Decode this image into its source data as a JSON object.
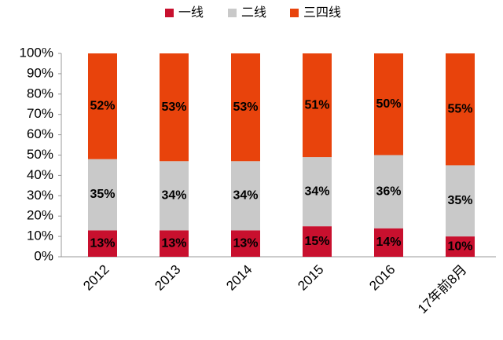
{
  "chart_data": {
    "type": "stacked_bar",
    "categories": [
      "2012",
      "2013",
      "2014",
      "2015",
      "2016",
      "17年前8月"
    ],
    "series": [
      {
        "name": "一线",
        "color": "#c8102e",
        "values": [
          13,
          13,
          13,
          15,
          14,
          10
        ],
        "value_labels": [
          "13%",
          "13%",
          "13%",
          "15%",
          "14%",
          "10%"
        ]
      },
      {
        "name": "二线",
        "color": "#c9c9c9",
        "values": [
          35,
          34,
          34,
          34,
          36,
          35
        ],
        "value_labels": [
          "35%",
          "34%",
          "34%",
          "34%",
          "36%",
          "35%"
        ]
      },
      {
        "name": "三四线",
        "color": "#e8430c",
        "values": [
          52,
          53,
          53,
          51,
          50,
          55
        ],
        "value_labels": [
          "52%",
          "53%",
          "53%",
          "51%",
          "50%",
          "55%"
        ]
      }
    ],
    "ylim": [
      0,
      100
    ],
    "yticks": [
      {
        "value": 0,
        "label": "0%"
      },
      {
        "value": 10,
        "label": "10%"
      },
      {
        "value": 20,
        "label": "20%"
      },
      {
        "value": 30,
        "label": "30%"
      },
      {
        "value": 40,
        "label": "40%"
      },
      {
        "value": 50,
        "label": "50%"
      },
      {
        "value": 60,
        "label": "60%"
      },
      {
        "value": 70,
        "label": "70%"
      },
      {
        "value": 80,
        "label": "80%"
      },
      {
        "value": 90,
        "label": "90%"
      },
      {
        "value": 100,
        "label": "100%"
      }
    ],
    "legend": "top"
  }
}
